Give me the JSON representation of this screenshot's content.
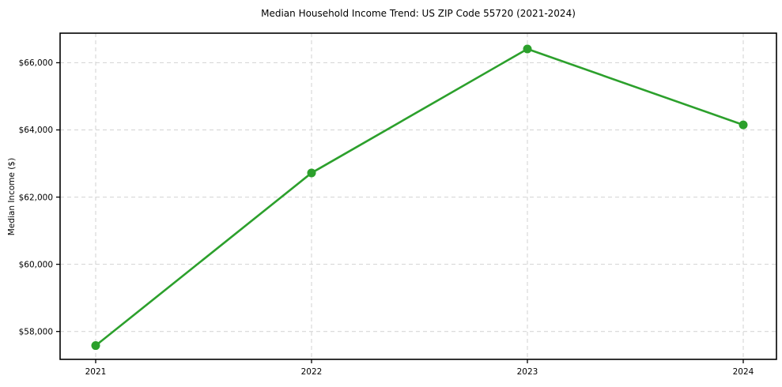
{
  "chart_data": {
    "type": "line",
    "title": "Median Household Income Trend: US ZIP Code 55720 (2021-2024)",
    "xlabel": "",
    "ylabel": "Median Income ($)",
    "x": [
      2021,
      2022,
      2023,
      2024
    ],
    "x_tick_labels": [
      "2021",
      "2022",
      "2023",
      "2024"
    ],
    "values": [
      57580,
      62720,
      66410,
      64150
    ],
    "y_ticks": [
      58000,
      60000,
      62000,
      64000,
      66000
    ],
    "y_tick_labels": [
      "$58,000",
      "$60,000",
      "$62,000",
      "$64,000",
      "$66,000"
    ],
    "ylim": [
      57170,
      66880
    ],
    "grid": true,
    "grid_style": "dashed",
    "legend_position": "none",
    "line_color": "#2ca02c",
    "marker": "circle",
    "background_color": "#ffffff",
    "grid_color": "#d2d2d2",
    "spine_color": "#000000",
    "tick_font_size": 10.5,
    "title_font_size": 12
  }
}
